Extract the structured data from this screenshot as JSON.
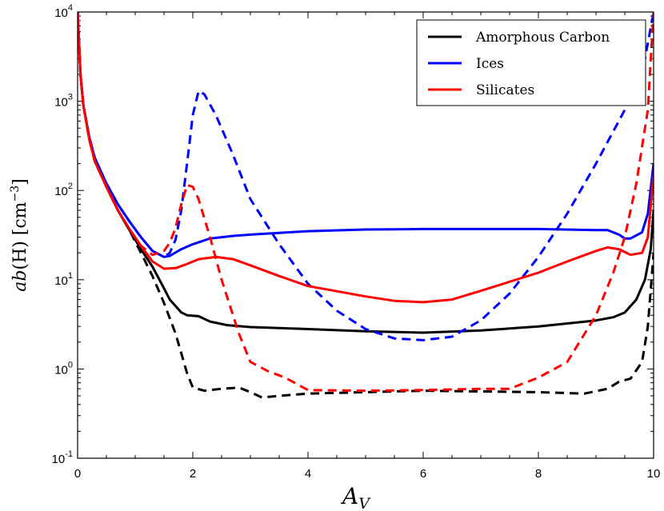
{
  "chart_data": {
    "type": "line",
    "xlabel": "A_V",
    "ylabel": "ab(H) [cm^-3]",
    "xlim": [
      0,
      10
    ],
    "ylim": [
      0.1,
      10000
    ],
    "yscale": "log",
    "xticks": [
      0,
      2,
      4,
      6,
      8,
      10
    ],
    "xtick_labels": [
      "0",
      "2",
      "4",
      "6",
      "8",
      "10"
    ],
    "ytick_exponents": [
      -1,
      0,
      1,
      2,
      3,
      4
    ],
    "legend_placement": "top-right",
    "series": [
      {
        "name": "Amorphous Carbon",
        "color": "#000000",
        "dash": false,
        "x": [
          0,
          0.05,
          0.1,
          0.2,
          0.3,
          0.5,
          0.7,
          0.9,
          1.1,
          1.3,
          1.5,
          1.6,
          1.8,
          1.9,
          2.1,
          2.3,
          2.6,
          3.0,
          4.0,
          5.0,
          6.0,
          7.0,
          8.0,
          9.0,
          9.3,
          9.5,
          9.7,
          9.85,
          9.95,
          10
        ],
        "y": [
          10000,
          2000,
          900,
          400,
          220,
          110,
          60,
          36,
          22,
          14,
          8,
          6,
          4.3,
          4.0,
          3.9,
          3.4,
          3.1,
          2.95,
          2.8,
          2.65,
          2.55,
          2.7,
          3.0,
          3.5,
          3.8,
          4.3,
          6,
          10,
          22,
          60
        ]
      },
      {
        "name": "Amorphous Carbon (dashed)",
        "color": "#000000",
        "dash": true,
        "x": [
          0,
          0.05,
          0.1,
          0.2,
          0.3,
          0.5,
          0.7,
          0.9,
          1.1,
          1.3,
          1.5,
          1.7,
          1.8,
          1.9,
          2.0,
          2.2,
          2.5,
          2.8,
          3.0,
          3.2,
          3.5,
          4.0,
          5.0,
          6.0,
          7.0,
          8.0,
          8.8,
          9.2,
          9.4,
          9.6,
          9.8,
          9.9,
          10
        ],
        "y": [
          10000,
          2000,
          900,
          400,
          220,
          110,
          60,
          36,
          20,
          11,
          5.5,
          2.5,
          1.5,
          0.9,
          0.62,
          0.57,
          0.6,
          0.62,
          0.55,
          0.48,
          0.5,
          0.53,
          0.55,
          0.57,
          0.56,
          0.55,
          0.53,
          0.6,
          0.72,
          0.78,
          1.2,
          3.0,
          20
        ]
      },
      {
        "name": "Ices",
        "color": "#0000ff",
        "dash": false,
        "x": [
          0,
          0.05,
          0.1,
          0.2,
          0.3,
          0.5,
          0.7,
          0.9,
          1.1,
          1.3,
          1.5,
          1.6,
          1.8,
          2.0,
          2.3,
          2.7,
          3.0,
          4.0,
          5.0,
          6.0,
          7.0,
          8.0,
          9.0,
          9.2,
          9.4,
          9.5,
          9.6,
          9.8,
          9.9,
          10
        ],
        "y": [
          10000,
          2000,
          900,
          400,
          230,
          120,
          70,
          45,
          30,
          21,
          18,
          18.5,
          22,
          25,
          29,
          31,
          32,
          35,
          36.5,
          37,
          37,
          37,
          36,
          36,
          32,
          29,
          29,
          34,
          55,
          200
        ]
      },
      {
        "name": "Ices (dashed)",
        "color": "#0000ff",
        "dash": true,
        "x": [
          0,
          0.05,
          0.1,
          0.2,
          0.3,
          0.5,
          0.7,
          0.9,
          1.1,
          1.3,
          1.5,
          1.6,
          1.7,
          1.8,
          1.9,
          2.0,
          2.1,
          2.2,
          2.4,
          2.7,
          3.0,
          3.5,
          4.0,
          4.5,
          5.0,
          5.5,
          6.0,
          6.5,
          7.0,
          7.5,
          8.0,
          8.5,
          9.0,
          9.5,
          9.8,
          10
        ],
        "y": [
          10000,
          2000,
          900,
          400,
          230,
          120,
          70,
          45,
          30,
          21,
          18,
          20,
          28,
          60,
          200,
          700,
          1300,
          1200,
          700,
          250,
          80,
          25,
          9,
          4.5,
          2.8,
          2.2,
          2.1,
          2.3,
          3.5,
          7,
          18,
          55,
          200,
          800,
          2000,
          10000
        ]
      },
      {
        "name": "Silicates",
        "color": "#ff0000",
        "dash": false,
        "x": [
          0,
          0.05,
          0.1,
          0.2,
          0.3,
          0.5,
          0.7,
          0.9,
          1.1,
          1.3,
          1.5,
          1.7,
          1.9,
          2.1,
          2.4,
          2.7,
          3.0,
          3.5,
          4.0,
          5.0,
          5.5,
          6.0,
          6.5,
          7.0,
          8.0,
          8.5,
          9.0,
          9.2,
          9.4,
          9.6,
          9.8,
          9.9,
          10
        ],
        "y": [
          10000,
          2000,
          900,
          380,
          210,
          110,
          60,
          37,
          24,
          16,
          13.3,
          13.5,
          15,
          17,
          18,
          17,
          14.5,
          11,
          8.5,
          6.5,
          5.8,
          5.6,
          6.0,
          7.5,
          12,
          16,
          21,
          23,
          22,
          19,
          20,
          30,
          150
        ]
      },
      {
        "name": "Silicates (dashed)",
        "color": "#ff0000",
        "dash": true,
        "x": [
          0,
          0.05,
          0.1,
          0.2,
          0.3,
          0.5,
          0.7,
          0.9,
          1.1,
          1.3,
          1.5,
          1.6,
          1.7,
          1.8,
          1.9,
          2.0,
          2.1,
          2.3,
          2.5,
          2.8,
          3.0,
          3.3,
          3.6,
          4.0,
          5.0,
          6.0,
          7.0,
          7.5,
          8.0,
          8.5,
          9.0,
          9.3,
          9.5,
          9.7,
          9.9,
          10
        ],
        "y": [
          10000,
          2000,
          900,
          380,
          210,
          110,
          60,
          37,
          24,
          19,
          21,
          26,
          38,
          70,
          115,
          110,
          80,
          30,
          10,
          2.5,
          1.2,
          0.95,
          0.8,
          0.58,
          0.57,
          0.58,
          0.6,
          0.6,
          0.8,
          1.2,
          4,
          12,
          30,
          120,
          800,
          10000
        ]
      }
    ],
    "legend": [
      "Amorphous Carbon",
      "Ices",
      "Silicates"
    ]
  }
}
